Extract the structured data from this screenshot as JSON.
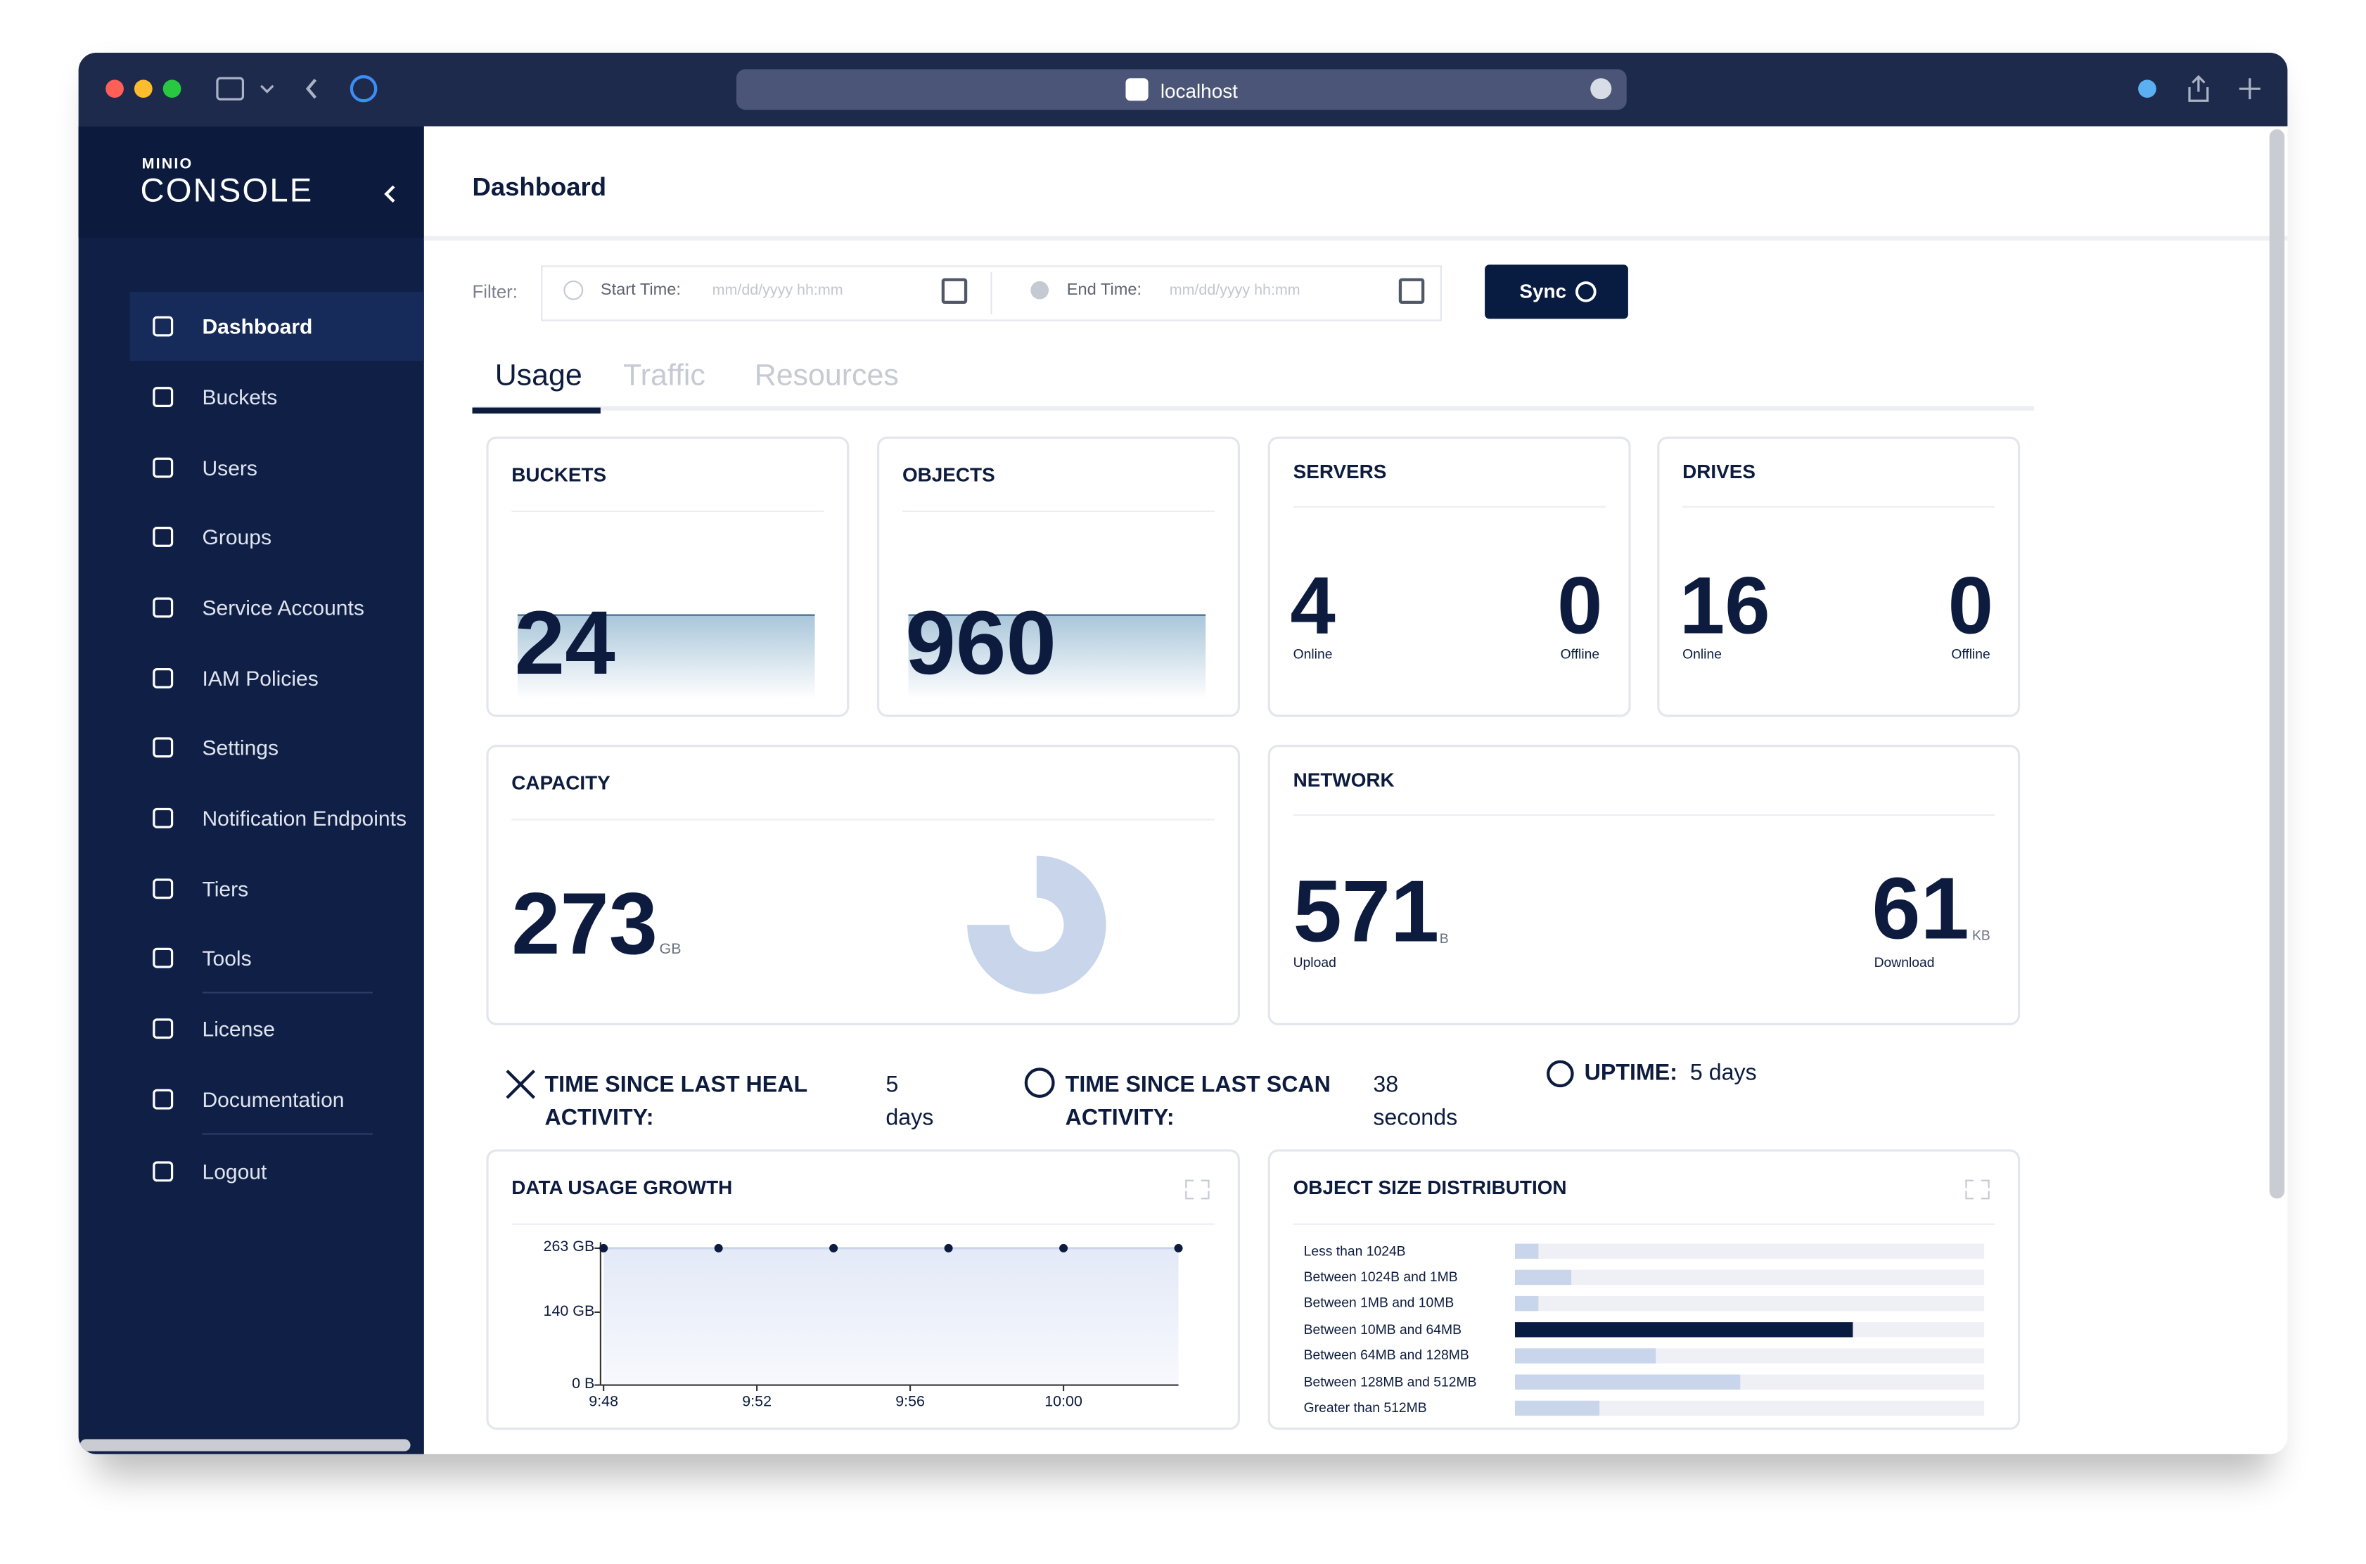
{
  "browser": {
    "url": "localhost"
  },
  "sidebar": {
    "logo_small": "MINIO",
    "logo": "CONSOLE",
    "menu": [
      "Dashboard",
      "Buckets",
      "Users",
      "Groups",
      "Service Accounts",
      "IAM Policies",
      "Settings",
      "Notification Endpoints",
      "Tiers",
      "Tools",
      "License",
      "Documentation",
      "Logout"
    ]
  },
  "header": {
    "title": "Dashboard"
  },
  "filter": {
    "label": "Filter:",
    "start_label": "Start Time:",
    "start_placeholder": "mm/dd/yyyy hh:mm",
    "end_label": "End Time:",
    "end_placeholder": "mm/dd/yyyy hh:mm",
    "sync": "Sync"
  },
  "tabs": [
    "Usage",
    "Traffic",
    "Resources"
  ],
  "cards": {
    "buckets": {
      "title": "BUCKETS",
      "value": 24
    },
    "objects": {
      "title": "OBJECTS",
      "value": 960
    },
    "servers": {
      "title": "SERVERS",
      "online": 4,
      "online_label": "Online",
      "offline": 0,
      "offline_label": "Offline"
    },
    "drives": {
      "title": "DRIVES",
      "online": 16,
      "online_label": "Online",
      "offline": 0,
      "offline_label": "Offline"
    },
    "capacity": {
      "title": "CAPACITY",
      "value": 273,
      "unit": "GB"
    },
    "network": {
      "title": "NETWORK",
      "upload": 571,
      "upload_unit": "B",
      "upload_label": "Upload",
      "download": 61,
      "download_unit": "KB",
      "download_label": "Download"
    }
  },
  "status": {
    "heal": {
      "label": "TIME SINCE LAST HEAL ACTIVITY:",
      "value": "5 days"
    },
    "scan": {
      "label": "TIME SINCE LAST SCAN ACTIVITY:",
      "value": "38 seconds"
    },
    "uptime": {
      "label": "UPTIME:",
      "value": "5 days"
    }
  },
  "data_usage_growth": {
    "type": "line",
    "title": "DATA USAGE GROWTH",
    "x": [
      "9:48",
      "9:51",
      "9:54",
      "9:57",
      "10:00",
      "10:03"
    ],
    "values": [
      263,
      263,
      263,
      263,
      263,
      263
    ],
    "xlim": [
      "9:48",
      "10:03"
    ],
    "xticks": [
      "9:48",
      "9:52",
      "9:56",
      "10:00"
    ],
    "ylim": [
      0,
      263
    ],
    "yticks": [
      {
        "value": 0,
        "label": "0 B"
      },
      {
        "value": 140,
        "label": "140 GB"
      },
      {
        "value": 263,
        "label": "263 GB"
      }
    ],
    "color": "#c9d5ec",
    "point_color": "#0c1b3e"
  },
  "object_size_distribution": {
    "type": "bar",
    "orientation": "horizontal",
    "title": "OBJECT SIZE DISTRIBUTION",
    "categories": [
      "Less than 1024B",
      "Between 1024B and 1MB",
      "Between 1MB and 10MB",
      "Between 10MB and 64MB",
      "Between 64MB and 128MB",
      "Between 128MB and 512MB",
      "Greater than 512MB"
    ],
    "values": [
      5,
      12,
      5,
      72,
      30,
      48,
      18
    ],
    "xlim": [
      0,
      100
    ],
    "color": "#c8d5ea",
    "highlight_color": "#081c42"
  }
}
